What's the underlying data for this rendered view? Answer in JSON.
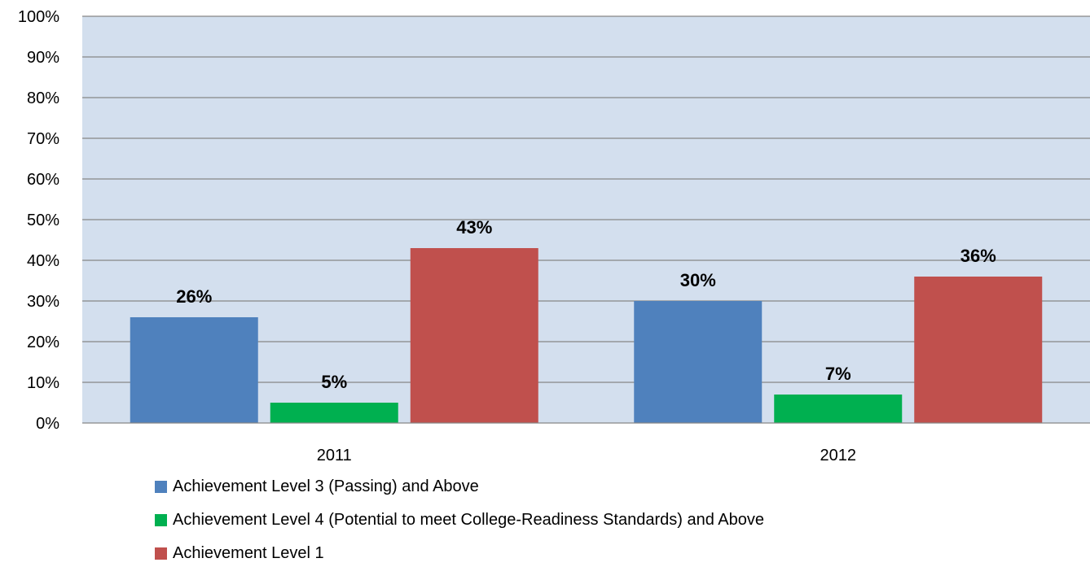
{
  "chart_data": {
    "type": "bar",
    "categories": [
      "2011",
      "2012"
    ],
    "series": [
      {
        "name": "Achievement Level 3 (Passing) and Above",
        "values": [
          26,
          30
        ],
        "labels": [
          "26%",
          "30%"
        ],
        "color": "#4F81BD"
      },
      {
        "name": "Achievement Level 4 (Potential to meet College-Readiness Standards) and Above",
        "values": [
          5,
          7
        ],
        "labels": [
          "5%",
          "7%"
        ],
        "color": "#00B050"
      },
      {
        "name": "Achievement Level 1",
        "values": [
          43,
          36
        ],
        "labels": [
          "43%",
          "36%"
        ],
        "color": "#C0504D"
      }
    ],
    "y_ticks": [
      "0%",
      "10%",
      "20%",
      "30%",
      "40%",
      "50%",
      "60%",
      "70%",
      "80%",
      "90%",
      "100%"
    ],
    "ylim": [
      0,
      100
    ],
    "title": "",
    "xlabel": "",
    "ylabel": "",
    "grid": true,
    "plot_background": "#D3DFEE",
    "legend_position": "bottom"
  }
}
